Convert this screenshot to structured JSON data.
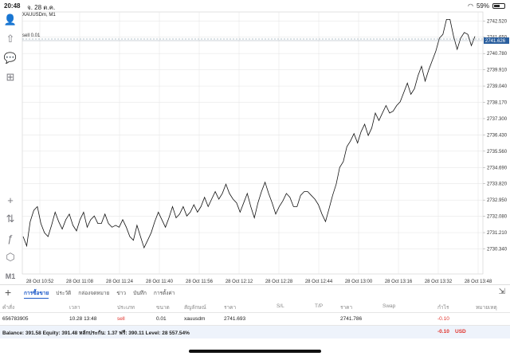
{
  "status_bar": {
    "time": "20:48",
    "date": "จ. 28 ต.ค.",
    "battery": "59%",
    "battery_level": 0.59
  },
  "left_toolbar": [
    {
      "name": "account-icon",
      "glyph": "👤"
    },
    {
      "name": "trade-icon",
      "glyph": "⇧"
    },
    {
      "name": "chat-icon",
      "glyph": "💬"
    },
    {
      "name": "new-chart-icon",
      "glyph": "⊞"
    },
    {
      "name": "crosshair-icon",
      "glyph": "+"
    },
    {
      "name": "indicators-icon",
      "glyph": "⇅"
    },
    {
      "name": "functions-icon",
      "glyph": "ƒ"
    },
    {
      "name": "objects-icon",
      "glyph": "⬡"
    },
    {
      "name": "timeframe-label",
      "glyph": "M1"
    }
  ],
  "chart": {
    "symbol_title": "XAUUSDm, M1",
    "trade_line_label": "sell 0.01",
    "current_price_tag": "2741.626",
    "price_tag_color": "#2b5f9e",
    "line_color": "#111111"
  },
  "chart_data": {
    "type": "line",
    "title": "XAUUSDm, M1",
    "ylim": [
      2729.0,
      2743.0
    ],
    "y_ticks": [
      "2742.520",
      "2741.650",
      "2740.780",
      "2739.910",
      "2739.040",
      "2738.170",
      "2737.300",
      "2736.430",
      "2735.560",
      "2734.690",
      "2733.820",
      "2732.950",
      "2732.080",
      "2731.210",
      "2730.340"
    ],
    "x_ticks": [
      "28 Oct 10:52",
      "28 Oct 11:08",
      "28 Oct 11:24",
      "28 Oct 11:40",
      "28 Oct 11:56",
      "28 Oct 12:12",
      "28 Oct 12:28",
      "28 Oct 12:44",
      "28 Oct 13:00",
      "28 Oct 13:16",
      "28 Oct 13:32",
      "28 Oct 13:48"
    ],
    "grid": true,
    "series": [
      {
        "values": [
          2731.0,
          2730.5,
          2731.8,
          2732.4,
          2732.6,
          2731.7,
          2731.2,
          2731.0,
          2731.6,
          2732.3,
          2731.8,
          2731.4,
          2731.9,
          2732.2,
          2731.6,
          2731.3,
          2731.9,
          2732.3,
          2731.5,
          2731.9,
          2732.1,
          2731.7,
          2731.7,
          2732.2,
          2731.7,
          2731.5,
          2731.6,
          2731.5,
          2731.9,
          2731.5,
          2731.0,
          2730.8,
          2731.6,
          2731.0,
          2730.4,
          2730.8,
          2731.2,
          2731.8,
          2732.3,
          2731.9,
          2731.5,
          2732.0,
          2732.6,
          2732.0,
          2732.2,
          2732.6,
          2732.1,
          2732.3,
          2732.7,
          2732.3,
          2732.6,
          2733.1,
          2732.6,
          2733.0,
          2733.4,
          2733.0,
          2733.3,
          2733.8,
          2733.3,
          2733.0,
          2732.8,
          2732.3,
          2732.8,
          2733.3,
          2732.6,
          2732.0,
          2732.8,
          2733.4,
          2733.9,
          2733.3,
          2732.8,
          2732.2,
          2732.6,
          2732.9,
          2733.3,
          2733.1,
          2732.6,
          2732.6,
          2733.2,
          2733.4,
          2733.4,
          2733.2,
          2733.0,
          2732.7,
          2732.2,
          2731.8,
          2732.5,
          2733.2,
          2733.8,
          2734.7,
          2735.0,
          2735.8,
          2736.1,
          2736.5,
          2736.0,
          2736.6,
          2737.0,
          2736.4,
          2736.8,
          2737.6,
          2737.2,
          2737.6,
          2738.0,
          2737.6,
          2737.7,
          2738.0,
          2738.2,
          2738.7,
          2739.2,
          2738.6,
          2738.9,
          2739.6,
          2740.1,
          2739.3,
          2739.9,
          2740.4,
          2740.9,
          2741.6,
          2741.8,
          2742.6,
          2742.6,
          2741.7,
          2741.0,
          2741.6,
          2741.9,
          2741.8,
          2741.2,
          2741.7
        ]
      }
    ]
  },
  "tabs": [
    "การซื้อขาย",
    "ประวัติ",
    "กล่องจดหมาย",
    "ข่าว",
    "บันทึก",
    "การตั้งค่า"
  ],
  "table": {
    "headers": [
      "คำสั่ง",
      "เวลา",
      "ประเภท",
      "ขนาด",
      "สัญลักษณ์",
      "ราคา",
      "S/L",
      "T/P",
      "ราคา",
      "Swap",
      "กำไร",
      "หมายเหตุ"
    ],
    "rows": [
      {
        "order": "656783905",
        "time": "10.28 13:48",
        "type": "sell",
        "volume": "0.01",
        "symbol": "xauusdm",
        "open_price": "2741.693",
        "sl": "",
        "tp": "",
        "price": "2741.786",
        "swap": "",
        "profit": "-0.10",
        "comment": ""
      }
    ]
  },
  "balance": {
    "text": "Balance: 391.58 Equity: 391.48 หลักประกัน: 1.37 ฟรี: 390.11 Level: 28 557.54%",
    "profit": "-0.10",
    "currency": "USD"
  }
}
